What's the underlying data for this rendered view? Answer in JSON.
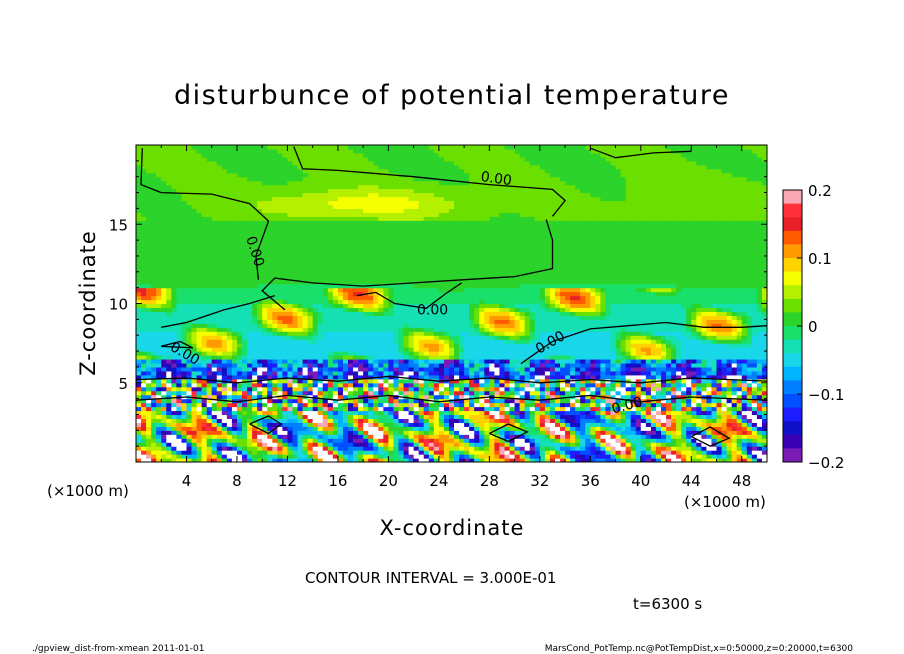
{
  "chart_data": {
    "type": "heatmap",
    "title": "disturbunce of potential temperature",
    "xlabel": "X-coordinate",
    "ylabel": "Z-coordinate",
    "x_unit_left": "(×1000 m)",
    "x_unit_right": "(×1000 m)",
    "xlim": [
      0,
      50
    ],
    "ylim": [
      0,
      20
    ],
    "x_ticks": [
      4,
      8,
      12,
      16,
      20,
      24,
      28,
      32,
      36,
      40,
      44,
      48
    ],
    "y_ticks": [
      5,
      10,
      15
    ],
    "colorbar": {
      "ticks": [
        {
          "value": 0.2,
          "label": "0.2"
        },
        {
          "value": 0.1,
          "label": "0.1"
        },
        {
          "value": 0,
          "label": "0"
        },
        {
          "value": -0.1,
          "label": "−0.1"
        },
        {
          "value": -0.2,
          "label": "−0.2"
        }
      ],
      "levels": [
        {
          "lo": 0.18,
          "hi": 0.2,
          "color": "#f7a8b4"
        },
        {
          "lo": 0.16,
          "hi": 0.18,
          "color": "#ff2f3c"
        },
        {
          "lo": 0.14,
          "hi": 0.16,
          "color": "#e8202a"
        },
        {
          "lo": 0.12,
          "hi": 0.14,
          "color": "#ff5a00"
        },
        {
          "lo": 0.1,
          "hi": 0.12,
          "color": "#ff9a00"
        },
        {
          "lo": 0.08,
          "hi": 0.1,
          "color": "#ffd200"
        },
        {
          "lo": 0.06,
          "hi": 0.08,
          "color": "#f5ff00"
        },
        {
          "lo": 0.04,
          "hi": 0.06,
          "color": "#b5f000"
        },
        {
          "lo": 0.02,
          "hi": 0.04,
          "color": "#6be000"
        },
        {
          "lo": 0.0,
          "hi": 0.02,
          "color": "#2bd32b"
        },
        {
          "lo": -0.02,
          "hi": 0.0,
          "color": "#18e06a"
        },
        {
          "lo": -0.04,
          "hi": -0.02,
          "color": "#14e0b4"
        },
        {
          "lo": -0.06,
          "hi": -0.04,
          "color": "#19d7e8"
        },
        {
          "lo": -0.08,
          "hi": -0.06,
          "color": "#00b4ff"
        },
        {
          "lo": -0.1,
          "hi": -0.08,
          "color": "#0080ff"
        },
        {
          "lo": -0.12,
          "hi": -0.1,
          "color": "#0050ff"
        },
        {
          "lo": -0.14,
          "hi": -0.12,
          "color": "#1c1cff"
        },
        {
          "lo": -0.16,
          "hi": -0.14,
          "color": "#1010c8"
        },
        {
          "lo": -0.18,
          "hi": -0.16,
          "color": "#3a00b4"
        },
        {
          "lo": -0.2,
          "hi": -0.18,
          "color": "#7a1cb4"
        }
      ]
    },
    "contour_labels": [
      "0.00",
      "0.00",
      "0.00",
      "0.00",
      "0.00",
      "0.00"
    ],
    "contour_interval_text": "CONTOUR INTERVAL = 3.000E-01",
    "time_text": "t=6300 s",
    "footer_left": "./gpview_dist-from-xmean  2011-01-01",
    "footer_right": "MarsCond_PotTemp.nc@PotTempDist,x=0:50000,z=0:20000,t=6300"
  }
}
